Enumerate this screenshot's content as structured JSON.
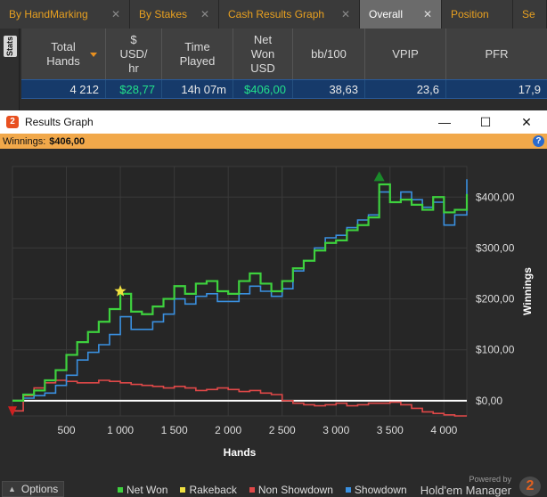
{
  "tabs": [
    {
      "label": "By HandMarking",
      "active": false,
      "closable": true
    },
    {
      "label": "By Stakes",
      "active": false,
      "closable": true
    },
    {
      "label": "Cash Results Graph",
      "active": false,
      "closable": true
    },
    {
      "label": "Overall",
      "active": true,
      "closable": true
    },
    {
      "label": "Se",
      "active": false,
      "closable": false
    }
  ],
  "position_tab": "Position",
  "stats_label": "Stats",
  "table": {
    "headers": [
      "Total\nHands",
      "$\nUSD/\nhr",
      "Time\nPlayed",
      "Net\nWon\nUSD",
      "bb/100",
      "VPIP",
      "PFR"
    ],
    "row": [
      "4 212",
      "$28,77",
      "14h 07m",
      "$406,00",
      "38,63",
      "23,6",
      "17,9"
    ]
  },
  "window": {
    "title": "Results Graph",
    "icon_label": "2",
    "minimize": "—",
    "maximize": "☐",
    "close": "✕",
    "winnings_label": "Winnings:",
    "winnings_value": "$406,00",
    "help": "?"
  },
  "chart_data": {
    "type": "line",
    "xlabel": "Hands",
    "ylabel": "Winnings",
    "xlim": [
      0,
      4212
    ],
    "ylim": [
      -30,
      460
    ],
    "x_ticks": [
      500,
      1000,
      1500,
      2000,
      2500,
      3000,
      3500,
      4000
    ],
    "x_tick_labels": [
      "500",
      "1 000",
      "1 500",
      "2 000",
      "2 500",
      "3 000",
      "3 500",
      "4 000"
    ],
    "y_ticks": [
      0,
      100,
      200,
      300,
      400
    ],
    "y_tick_labels": [
      "$0,00",
      "$100,00",
      "$200,00",
      "$300,00",
      "$400,00"
    ],
    "grid": true,
    "legend_position": "bottom",
    "series": [
      {
        "name": "Net Won",
        "color": "#3ed13e",
        "x": [
          0,
          100,
          200,
          300,
          400,
          500,
          600,
          700,
          800,
          900,
          1000,
          1100,
          1200,
          1300,
          1400,
          1500,
          1600,
          1700,
          1800,
          1900,
          2000,
          2100,
          2200,
          2300,
          2400,
          2500,
          2600,
          2700,
          2800,
          2900,
          3000,
          3100,
          3200,
          3300,
          3400,
          3500,
          3600,
          3700,
          3800,
          3900,
          4000,
          4100,
          4212
        ],
        "values": [
          0,
          12,
          20,
          40,
          60,
          90,
          115,
          135,
          155,
          180,
          210,
          175,
          170,
          185,
          200,
          225,
          210,
          230,
          235,
          215,
          210,
          235,
          250,
          230,
          215,
          235,
          260,
          275,
          295,
          310,
          315,
          335,
          345,
          360,
          425,
          390,
          395,
          385,
          375,
          400,
          370,
          375,
          406
        ]
      },
      {
        "name": "Rakeback",
        "color": "#f0e040",
        "x": [
          1000
        ],
        "values": [
          215
        ]
      },
      {
        "name": "Non Showdown",
        "color": "#e04848",
        "x": [
          0,
          100,
          200,
          300,
          400,
          500,
          600,
          700,
          800,
          900,
          1000,
          1100,
          1200,
          1300,
          1400,
          1500,
          1600,
          1700,
          1800,
          1900,
          2000,
          2100,
          2200,
          2300,
          2400,
          2500,
          2600,
          2700,
          2800,
          2900,
          3000,
          3100,
          3200,
          3300,
          3400,
          3500,
          3600,
          3700,
          3800,
          3900,
          4000,
          4100,
          4212
        ],
        "values": [
          -20,
          10,
          25,
          35,
          40,
          38,
          35,
          35,
          40,
          38,
          35,
          32,
          30,
          28,
          25,
          28,
          25,
          20,
          22,
          25,
          22,
          18,
          20,
          15,
          12,
          0,
          -5,
          -8,
          -10,
          -8,
          -5,
          -10,
          -8,
          -5,
          -5,
          -3,
          -8,
          -15,
          -22,
          -25,
          -28,
          -30,
          -30
        ]
      },
      {
        "name": "Showdown",
        "color": "#3a90e0",
        "x": [
          0,
          100,
          200,
          300,
          400,
          500,
          600,
          700,
          800,
          900,
          1000,
          1100,
          1200,
          1300,
          1400,
          1500,
          1600,
          1700,
          1800,
          1900,
          2000,
          2100,
          2200,
          2300,
          2400,
          2500,
          2600,
          2700,
          2800,
          2900,
          3000,
          3100,
          3200,
          3300,
          3400,
          3500,
          3600,
          3700,
          3800,
          3900,
          4000,
          4100,
          4212
        ],
        "values": [
          0,
          5,
          10,
          15,
          30,
          50,
          80,
          95,
          110,
          130,
          165,
          140,
          140,
          155,
          170,
          200,
          190,
          205,
          210,
          195,
          195,
          210,
          225,
          215,
          205,
          220,
          255,
          275,
          300,
          320,
          325,
          340,
          355,
          365,
          410,
          390,
          410,
          395,
          380,
          390,
          345,
          365,
          435
        ]
      }
    ],
    "markers": [
      {
        "label": "max",
        "x": 3400,
        "y": 440,
        "color": "#1a8a2a"
      },
      {
        "label": "min",
        "x": 0,
        "y": -20,
        "color": "#d02020"
      }
    ]
  },
  "footer": {
    "options_label": "Options",
    "legend": [
      "Net Won",
      "Rakeback",
      "Non Showdown",
      "Showdown"
    ],
    "legend_colors": [
      "#3ed13e",
      "#f0e040",
      "#e04848",
      "#3a90e0"
    ],
    "powered_by": "Powered by",
    "brand": "Hold'em Manager",
    "brand_logo": "2"
  }
}
